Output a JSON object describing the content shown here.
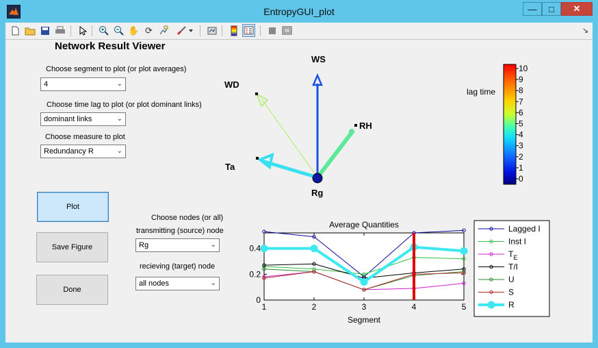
{
  "window": {
    "title": "EntropyGUI_plot",
    "minimize": "—",
    "maximize": "□",
    "close": "✕"
  },
  "toolbar": {
    "items": [
      "new-file-icon",
      "open-folder-icon",
      "save-icon",
      "print-icon",
      "pointer-icon",
      "zoom-in-icon",
      "zoom-out-icon",
      "pan-hand-icon",
      "rotate-3d-icon",
      "data-cursor-icon",
      "brush-icon",
      "brush-dropdown-icon",
      "link-plot-icon",
      "colorbar-icon",
      "legend-icon",
      "hide-plot-tools-icon",
      "show-plot-tools-icon"
    ],
    "corner": "↘"
  },
  "panel": {
    "title": "Network Result Viewer",
    "segment_label": "Choose segment to plot (or plot averages)",
    "segment_value": "4",
    "lag_label": "Choose time lag to plot (or plot dominant links)",
    "lag_value": "dominant links",
    "measure_label": "Choose measure to plot",
    "measure_value": "Redundancy R",
    "plot_button": "Plot",
    "save_button": "Save Figure",
    "done_button": "Done",
    "nodes_label": "Choose nodes (or all)",
    "source_label": "transmitting (source) node",
    "source_value": "Rg",
    "target_label": "recieving (target) node",
    "target_value": "all nodes"
  },
  "network": {
    "nodes": [
      "WS",
      "WD",
      "RH",
      "Ta",
      "Rg"
    ],
    "colorbar_label": "lag time",
    "colorbar_ticks": [
      "10",
      "9",
      "8",
      "7",
      "6",
      "5",
      "4",
      "3",
      "2",
      "1",
      "0"
    ],
    "colors": {
      "WS": "#1a52e0",
      "WD": "#a8f060",
      "RH": "#5ee89a",
      "Ta": "#38e0f0",
      "Rg": "#0a1aa0"
    }
  },
  "chart_data": {
    "type": "line",
    "title": "Average Quantities",
    "xlabel": "Segment",
    "ylabel": "",
    "x": [
      1,
      2,
      3,
      4,
      5
    ],
    "xticks": [
      "1",
      "2",
      "3",
      "4",
      "5"
    ],
    "yticks": [
      "0",
      "0.2",
      "0.4"
    ],
    "ylim": [
      0,
      0.52
    ],
    "marker_x": 4,
    "marker_color": "#e00000",
    "series": [
      {
        "name": "Lagged I",
        "color": "#0a0a9a",
        "values": [
          0.53,
          0.49,
          0.18,
          0.52,
          0.54
        ]
      },
      {
        "name": "Inst I",
        "color": "#30c040",
        "values": [
          0.26,
          0.24,
          0.2,
          0.33,
          0.32
        ]
      },
      {
        "name": "T",
        "sub": "E",
        "color": "#d020d0",
        "values": [
          0.18,
          0.22,
          0.08,
          0.09,
          0.13
        ]
      },
      {
        "name": "T/I",
        "color": "#000000",
        "values": [
          0.27,
          0.28,
          0.17,
          0.21,
          0.24
        ]
      },
      {
        "name": "U",
        "color": "#2a8a2a",
        "values": [
          0.24,
          0.22,
          0.08,
          0.19,
          0.22
        ]
      },
      {
        "name": "S",
        "color": "#b02a2a",
        "values": [
          0.17,
          0.22,
          0.08,
          0.2,
          0.21
        ]
      },
      {
        "name": "R",
        "color": "#3ee8f0",
        "values": [
          0.4,
          0.4,
          0.14,
          0.41,
          0.38
        ]
      }
    ]
  }
}
